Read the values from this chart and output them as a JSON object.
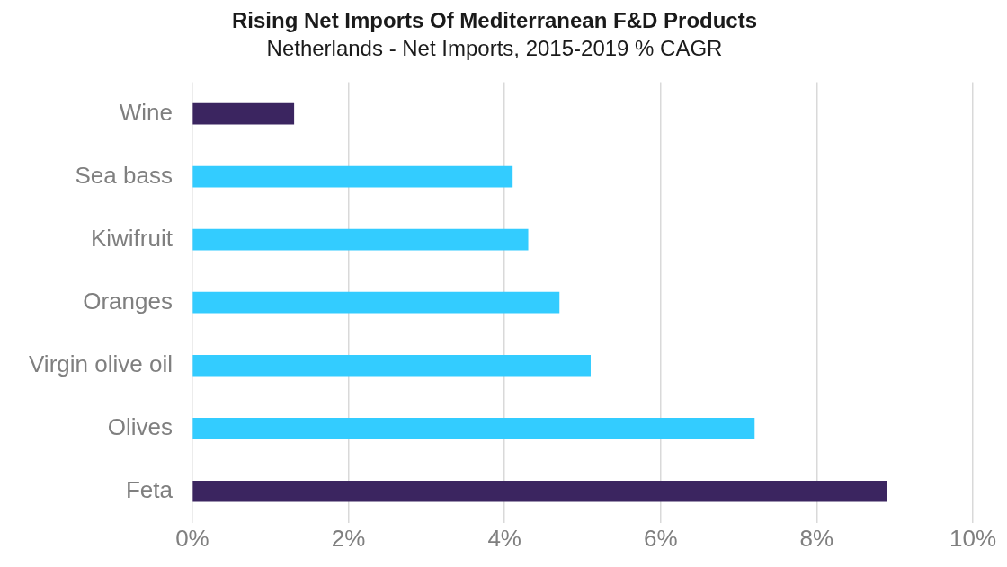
{
  "chart_data": {
    "type": "bar",
    "orientation": "horizontal",
    "title": "Rising Net Imports Of Mediterranean F&D Products",
    "subtitle": "Netherlands - Net Imports, 2015-2019 % CAGR",
    "categories": [
      "Wine",
      "Sea bass",
      "Kiwifruit",
      "Oranges",
      "Virgin olive oil",
      "Olives",
      "Feta"
    ],
    "values": [
      1.3,
      4.1,
      4.3,
      4.7,
      5.1,
      7.2,
      8.9
    ],
    "colors": [
      "#3b2560",
      "#33ccff",
      "#33ccff",
      "#33ccff",
      "#33ccff",
      "#33ccff",
      "#3b2560"
    ],
    "xlim": [
      0,
      10
    ],
    "xticks": [
      {
        "value": 0,
        "label": "0%"
      },
      {
        "value": 2,
        "label": "2%"
      },
      {
        "value": 4,
        "label": "4%"
      },
      {
        "value": 6,
        "label": "6%"
      },
      {
        "value": 8,
        "label": "8%"
      },
      {
        "value": 10,
        "label": "10%"
      }
    ],
    "grid": "x",
    "legend": false
  }
}
